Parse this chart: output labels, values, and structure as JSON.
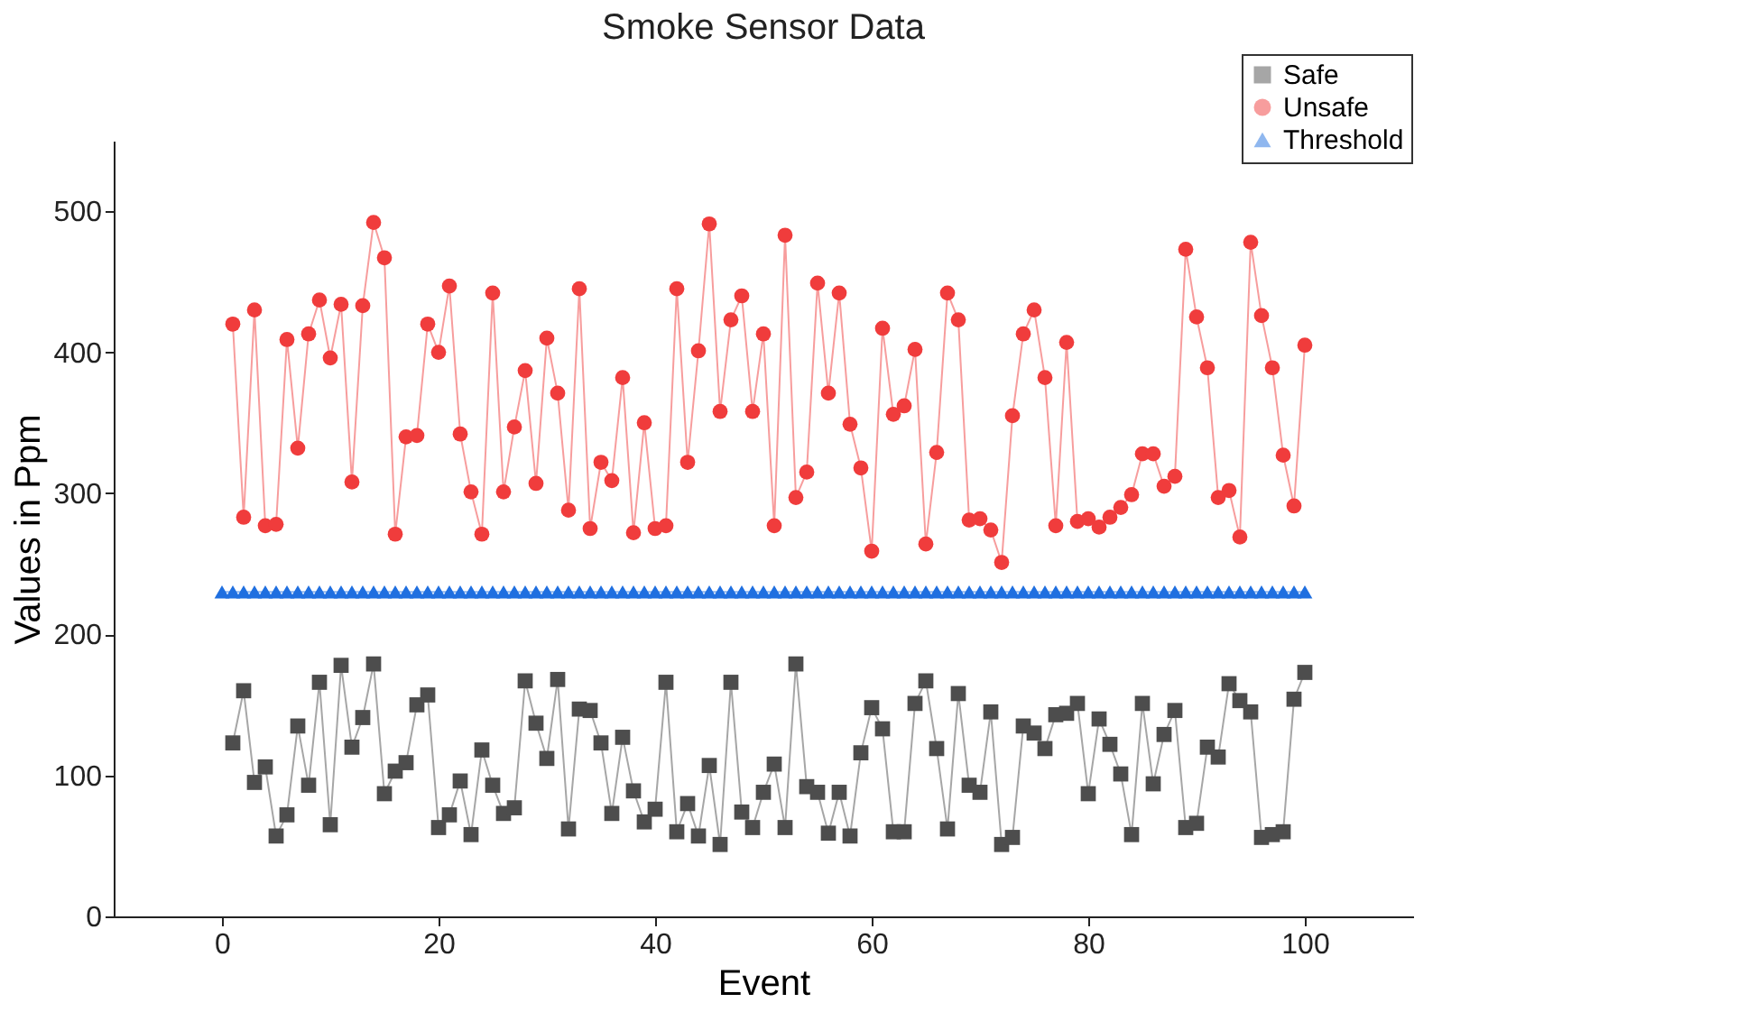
{
  "chart_data": {
    "type": "line",
    "title": "Smoke Sensor Data",
    "xlabel": "Event",
    "ylabel": "Values in Ppm",
    "x": [
      1,
      2,
      3,
      4,
      5,
      6,
      7,
      8,
      9,
      10,
      11,
      12,
      13,
      14,
      15,
      16,
      17,
      18,
      19,
      20,
      21,
      22,
      23,
      24,
      25,
      26,
      27,
      28,
      29,
      30,
      31,
      32,
      33,
      34,
      35,
      36,
      37,
      38,
      39,
      40,
      41,
      42,
      43,
      44,
      45,
      46,
      47,
      48,
      49,
      50,
      51,
      52,
      53,
      54,
      55,
      56,
      57,
      58,
      59,
      60,
      61,
      62,
      63,
      64,
      65,
      66,
      67,
      68,
      69,
      70,
      71,
      72,
      73,
      74,
      75,
      76,
      77,
      78,
      79,
      80,
      81,
      82,
      83,
      84,
      85,
      86,
      87,
      88,
      89,
      90,
      91,
      92,
      93,
      94,
      95,
      96,
      97,
      98,
      99,
      100
    ],
    "series": [
      {
        "name": "Safe",
        "color": "#4d4d4d",
        "marker": "square",
        "values": [
          123,
          160,
          95,
          106,
          57,
          72,
          135,
          93,
          166,
          65,
          178,
          120,
          141,
          179,
          87,
          103,
          109,
          150,
          157,
          63,
          72,
          96,
          58,
          118,
          93,
          73,
          77,
          167,
          137,
          112,
          168,
          62,
          147,
          146,
          123,
          73,
          127,
          89,
          67,
          76,
          166,
          60,
          80,
          57,
          107,
          51,
          166,
          74,
          63,
          88,
          108,
          63,
          179,
          92,
          88,
          59,
          88,
          57,
          116,
          148,
          133,
          60,
          60,
          151,
          167,
          119,
          62,
          158,
          93,
          88,
          145,
          51,
          56,
          135,
          130,
          119,
          143,
          144,
          151,
          87,
          140,
          122,
          101,
          58,
          151,
          94,
          129,
          146,
          63,
          66,
          120,
          113,
          165,
          153,
          145,
          56,
          58,
          60,
          154,
          173
        ]
      },
      {
        "name": "Unsafe",
        "color": "#f03c3c",
        "marker": "circle",
        "values": [
          420,
          283,
          430,
          277,
          278,
          409,
          332,
          413,
          437,
          396,
          434,
          308,
          433,
          492,
          467,
          271,
          340,
          341,
          420,
          400,
          447,
          342,
          301,
          271,
          442,
          301,
          347,
          387,
          307,
          410,
          371,
          288,
          445,
          275,
          322,
          309,
          382,
          272,
          350,
          275,
          277,
          445,
          322,
          401,
          491,
          358,
          423,
          440,
          358,
          413,
          277,
          483,
          297,
          315,
          449,
          371,
          442,
          349,
          318,
          259,
          417,
          356,
          362,
          402,
          264,
          329,
          442,
          423,
          281,
          282,
          274,
          251,
          355,
          413,
          430,
          382,
          277,
          407,
          280,
          282,
          276,
          283,
          290,
          299,
          328,
          328,
          305,
          312,
          473,
          425,
          389,
          297,
          302,
          269,
          478,
          426,
          389,
          327,
          291,
          405
        ]
      },
      {
        "name": "Threshold",
        "color": "#1f6fe0",
        "marker": "triangle",
        "x": [
          0,
          1,
          2,
          3,
          4,
          5,
          6,
          7,
          8,
          9,
          10,
          11,
          12,
          13,
          14,
          15,
          16,
          17,
          18,
          19,
          20,
          21,
          22,
          23,
          24,
          25,
          26,
          27,
          28,
          29,
          30,
          31,
          32,
          33,
          34,
          35,
          36,
          37,
          38,
          39,
          40,
          41,
          42,
          43,
          44,
          45,
          46,
          47,
          48,
          49,
          50,
          51,
          52,
          53,
          54,
          55,
          56,
          57,
          58,
          59,
          60,
          61,
          62,
          63,
          64,
          65,
          66,
          67,
          68,
          69,
          70,
          71,
          72,
          73,
          74,
          75,
          76,
          77,
          78,
          79,
          80,
          81,
          82,
          83,
          84,
          85,
          86,
          87,
          88,
          89,
          90,
          91,
          92,
          93,
          94,
          95,
          96,
          97,
          98,
          99,
          100
        ],
        "values": [
          230,
          230,
          230,
          230,
          230,
          230,
          230,
          230,
          230,
          230,
          230,
          230,
          230,
          230,
          230,
          230,
          230,
          230,
          230,
          230,
          230,
          230,
          230,
          230,
          230,
          230,
          230,
          230,
          230,
          230,
          230,
          230,
          230,
          230,
          230,
          230,
          230,
          230,
          230,
          230,
          230,
          230,
          230,
          230,
          230,
          230,
          230,
          230,
          230,
          230,
          230,
          230,
          230,
          230,
          230,
          230,
          230,
          230,
          230,
          230,
          230,
          230,
          230,
          230,
          230,
          230,
          230,
          230,
          230,
          230,
          230,
          230,
          230,
          230,
          230,
          230,
          230,
          230,
          230,
          230,
          230,
          230,
          230,
          230,
          230,
          230,
          230,
          230,
          230,
          230,
          230,
          230,
          230,
          230,
          230,
          230,
          230,
          230,
          230,
          230,
          230
        ]
      }
    ],
    "xlim": [
      -10,
      110
    ],
    "xticks": [
      0,
      20,
      40,
      60,
      80,
      100
    ],
    "ylim": [
      0,
      550
    ],
    "yticks": [
      0,
      100,
      200,
      300,
      400,
      500
    ],
    "grid": false,
    "legend": "top right",
    "line_style": "solid"
  }
}
